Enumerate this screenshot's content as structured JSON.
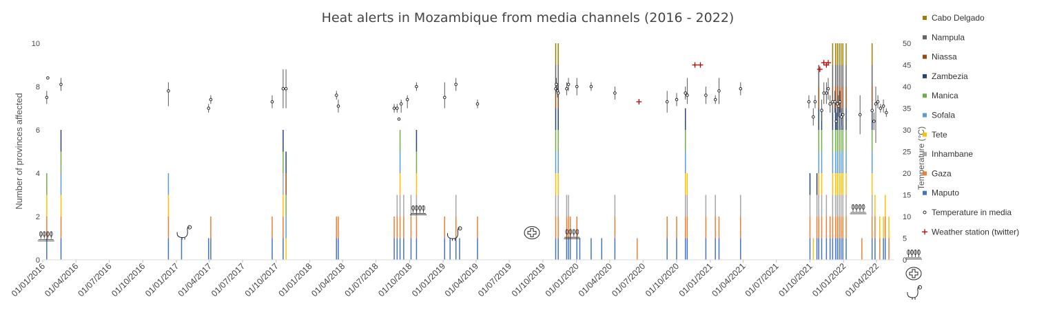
{
  "chart_data": {
    "type": "bar",
    "title": "Heat alerts in Mozambique from media channels (2016 - 2022)",
    "ylabel": "Number of provinces affected",
    "y2label": "Temperature (°C)",
    "ylim": [
      0,
      10
    ],
    "yticks": [
      0,
      2,
      4,
      6,
      8,
      10
    ],
    "y2lim": [
      0,
      50
    ],
    "y2ticks": [
      0,
      5,
      10,
      15,
      20,
      25,
      30,
      35,
      40,
      45,
      50
    ],
    "xlim": [
      "2016-01-01",
      "2022-05-20"
    ],
    "xticks": [
      "01/01/2016",
      "01/04/2016",
      "01/07/2016",
      "01/10/2016",
      "01/01/2017",
      "01/04/2017",
      "01/07/2017",
      "01/10/2017",
      "01/01/2018",
      "01/04/2018",
      "01/07/2018",
      "01/10/2018",
      "01/01/2019",
      "01/04/2019",
      "01/07/2019",
      "01/10/2019",
      "01/01/2020",
      "01/04/2020",
      "01/07/2020",
      "01/10/2020",
      "01/01/2021",
      "01/04/2021",
      "01/07/2021",
      "01/10/2021",
      "01/01/2022",
      "01/04/2022"
    ],
    "legend_position": "right",
    "grid": false,
    "series": [
      {
        "name": "Cabo Delgado",
        "color": "#9c7f00"
      },
      {
        "name": "Nampula",
        "color": "#636363"
      },
      {
        "name": "Niassa",
        "color": "#9e480e"
      },
      {
        "name": "Zambezia",
        "color": "#264478"
      },
      {
        "name": "Manica",
        "color": "#70ad47"
      },
      {
        "name": "Sofala",
        "color": "#5b9bd5"
      },
      {
        "name": "Tete",
        "color": "#ffc000"
      },
      {
        "name": "Inhambane",
        "color": "#a5a5a5"
      },
      {
        "name": "Gaza",
        "color": "#ed7d31"
      },
      {
        "name": "Maputo",
        "color": "#4472c4"
      }
    ],
    "temperature_series": {
      "name": "Temperature in media"
    },
    "station_series": {
      "name": "Weather station (twitter)",
      "color": "#c00000"
    },
    "bars": [
      {
        "date": "2016-01-12",
        "stack": [
          "Maputo",
          "Gaza",
          "Tete",
          "Manica"
        ]
      },
      {
        "date": "2016-02-20",
        "stack": [
          "Maputo",
          "Gaza",
          "Tete",
          "Sofala",
          "Manica",
          "Zambezia"
        ]
      },
      {
        "date": "2016-12-10",
        "stack": [
          "Maputo",
          "Gaza",
          "Tete",
          "Sofala"
        ]
      },
      {
        "date": "2017-01-15",
        "stack": [
          "Maputo"
        ]
      },
      {
        "date": "2017-03-30",
        "stack": [
          "Maputo"
        ]
      },
      {
        "date": "2017-04-05",
        "stack": [
          "Maputo",
          "Gaza"
        ]
      },
      {
        "date": "2017-09-20",
        "stack": [
          "Maputo",
          "Gaza"
        ]
      },
      {
        "date": "2017-10-20",
        "stack": [
          "Maputo",
          "Gaza",
          "Tete",
          "Inhambane",
          "Manica",
          "Zambezia"
        ]
      },
      {
        "date": "2017-10-28",
        "stack": [
          "Tete",
          "Sofala",
          "Manica",
          "Niassa",
          "Zambezia"
        ]
      },
      {
        "date": "2018-03-15",
        "stack": [
          "Maputo",
          "Gaza"
        ]
      },
      {
        "date": "2018-03-20",
        "stack": [
          "Maputo",
          "Gaza"
        ]
      },
      {
        "date": "2018-08-20",
        "stack": [
          "Maputo",
          "Gaza"
        ]
      },
      {
        "date": "2018-08-28",
        "stack": [
          "Maputo",
          "Gaza",
          "Inhambane"
        ]
      },
      {
        "date": "2018-09-05",
        "stack": [
          "Maputo",
          "Gaza",
          "Inhambane",
          "Tete",
          "Sofala",
          "Manica"
        ]
      },
      {
        "date": "2018-09-15",
        "stack": [
          "Maputo",
          "Gaza",
          "Inhambane"
        ]
      },
      {
        "date": "2018-10-05",
        "stack": [
          "Maputo",
          "Gaza",
          "Inhambane"
        ]
      },
      {
        "date": "2018-10-20",
        "stack": [
          "Maputo",
          "Gaza",
          "Inhambane",
          "Tete",
          "Manica",
          "Zambezia"
        ]
      },
      {
        "date": "2019-01-05",
        "stack": [
          "Maputo",
          "Gaza"
        ]
      },
      {
        "date": "2019-01-20",
        "stack": [
          "Maputo"
        ]
      },
      {
        "date": "2019-02-05",
        "stack": [
          "Maputo",
          "Gaza",
          "Inhambane"
        ]
      },
      {
        "date": "2019-02-15",
        "stack": [
          "Maputo"
        ]
      },
      {
        "date": "2019-04-05",
        "stack": [
          "Maputo",
          "Gaza"
        ]
      },
      {
        "date": "2019-11-05",
        "stack": [
          "Maputo",
          "Gaza",
          "Inhambane",
          "Tete",
          "Sofala",
          "Manica",
          "Zambezia",
          "Niassa",
          "Nampula",
          "Cabo Delgado"
        ]
      },
      {
        "date": "2019-11-12",
        "stack": [
          "Maputo",
          "Gaza",
          "Inhambane",
          "Tete",
          "Sofala",
          "Manica",
          "Zambezia",
          "Niassa",
          "Nampula",
          "Cabo Delgado"
        ]
      },
      {
        "date": "2019-12-05",
        "stack": [
          "Maputo",
          "Gaza",
          "Inhambane"
        ]
      },
      {
        "date": "2019-12-10",
        "stack": [
          "Maputo",
          "Gaza",
          "Inhambane"
        ]
      },
      {
        "date": "2019-12-15",
        "stack": [
          "Maputo",
          "Gaza"
        ]
      },
      {
        "date": "2020-01-02",
        "stack": [
          "Maputo",
          "Gaza"
        ]
      },
      {
        "date": "2020-01-10",
        "stack": [
          "Maputo"
        ]
      },
      {
        "date": "2020-02-10",
        "stack": [
          "Maputo"
        ]
      },
      {
        "date": "2020-03-10",
        "stack": [
          "Maputo"
        ]
      },
      {
        "date": "2020-04-15",
        "stack": [
          "Maputo",
          "Gaza",
          "Inhambane"
        ]
      },
      {
        "date": "2020-06-15",
        "stack": [
          "Gaza"
        ]
      },
      {
        "date": "2020-09-05",
        "stack": [
          "Maputo",
          "Gaza"
        ]
      },
      {
        "date": "2020-10-01",
        "stack": [
          "Maputo",
          "Gaza"
        ]
      },
      {
        "date": "2020-10-25",
        "stack": [
          "Maputo",
          "Gaza",
          "Inhambane",
          "Tete",
          "Sofala",
          "Manica",
          "Zambezia"
        ]
      },
      {
        "date": "2020-10-30",
        "stack": [
          "Maputo",
          "Gaza",
          "Inhambane",
          "Tete"
        ]
      },
      {
        "date": "2020-12-20",
        "stack": [
          "Maputo",
          "Gaza",
          "Inhambane"
        ]
      },
      {
        "date": "2021-01-15",
        "stack": [
          "Maputo",
          "Gaza",
          "Inhambane"
        ]
      },
      {
        "date": "2021-01-25",
        "stack": [
          "Maputo",
          "Gaza"
        ]
      },
      {
        "date": "2021-03-25",
        "stack": [
          "Maputo",
          "Gaza",
          "Inhambane"
        ]
      },
      {
        "date": "2021-10-01",
        "stack": [
          "Maputo",
          "Gaza",
          "Inhambane",
          "Zambezia"
        ]
      },
      {
        "date": "2021-10-10",
        "stack": [
          "Tete"
        ]
      },
      {
        "date": "2021-10-20",
        "stack": [
          "Maputo",
          "Gaza",
          "Inhambane",
          "Zambezia"
        ]
      },
      {
        "date": "2021-10-25",
        "stack": [
          "Maputo",
          "Gaza",
          "Inhambane",
          "Tete",
          "Sofala",
          "Manica",
          "Zambezia",
          "Niassa",
          "Nampula"
        ]
      },
      {
        "date": "2021-11-02",
        "stack": [
          "Maputo",
          "Gaza",
          "Inhambane",
          "Tete",
          "Sofala",
          "Manica",
          "Zambezia"
        ]
      },
      {
        "date": "2021-11-15",
        "stack": [
          "Maputo",
          "Gaza",
          "Inhambane"
        ]
      },
      {
        "date": "2021-11-25",
        "stack": [
          "Maputo",
          "Gaza"
        ]
      },
      {
        "date": "2021-12-02",
        "stack": [
          "Maputo",
          "Gaza",
          "Inhambane",
          "Tete",
          "Sofala",
          "Manica",
          "Zambezia",
          "Niassa",
          "Nampula",
          "Cabo Delgado"
        ]
      },
      {
        "date": "2021-12-10",
        "stack": [
          "Maputo",
          "Gaza",
          "Inhambane",
          "Tete",
          "Sofala",
          "Manica",
          "Zambezia",
          "Niassa",
          "Nampula",
          "Cabo Delgado"
        ]
      },
      {
        "date": "2021-12-15",
        "stack": [
          "Maputo",
          "Gaza",
          "Inhambane",
          "Tete",
          "Sofala",
          "Manica",
          "Zambezia",
          "Niassa",
          "Nampula",
          "Cabo Delgado"
        ]
      },
      {
        "date": "2021-12-20",
        "stack": [
          "Maputo",
          "Gaza",
          "Inhambane",
          "Tete",
          "Sofala",
          "Manica",
          "Zambezia",
          "Niassa",
          "Nampula",
          "Cabo Delgado"
        ]
      },
      {
        "date": "2021-12-25",
        "stack": [
          "Maputo",
          "Gaza",
          "Inhambane",
          "Tete",
          "Sofala",
          "Manica",
          "Zambezia",
          "Niassa",
          "Nampula",
          "Cabo Delgado"
        ]
      },
      {
        "date": "2021-12-30",
        "stack": [
          "Maputo",
          "Gaza",
          "Inhambane",
          "Tete",
          "Sofala",
          "Manica",
          "Zambezia",
          "Niassa",
          "Nampula",
          "Cabo Delgado"
        ]
      },
      {
        "date": "2022-01-08",
        "stack": [
          "Maputo",
          "Gaza",
          "Inhambane",
          "Tete",
          "Sofala",
          "Manica",
          "Zambezia",
          "Niassa",
          "Nampula",
          "Cabo Delgado"
        ]
      },
      {
        "date": "2022-02-20",
        "stack": [
          "Gaza"
        ]
      },
      {
        "date": "2022-03-20",
        "stack": [
          "Maputo",
          "Gaza",
          "Inhambane",
          "Tete",
          "Sofala",
          "Manica",
          "Zambezia",
          "Niassa",
          "Nampula",
          "Cabo Delgado"
        ]
      },
      {
        "date": "2022-03-28",
        "stack": [
          "Maputo",
          "Gaza",
          "Tete"
        ]
      },
      {
        "date": "2022-04-10",
        "stack": [
          "Gaza",
          "Tete"
        ]
      },
      {
        "date": "2022-04-20",
        "stack": [
          "Maputo",
          "Tete"
        ]
      },
      {
        "date": "2022-04-25",
        "stack": [
          "Maputo",
          "Gaza",
          "Tete"
        ]
      },
      {
        "date": "2022-05-05",
        "stack": [
          "Gaza",
          "Tete"
        ]
      }
    ],
    "temperature_points": [
      {
        "date": "2016-01-12",
        "temp": 37.5,
        "low": 36,
        "high": 39
      },
      {
        "date": "2016-01-15",
        "temp": 42
      },
      {
        "date": "2016-02-20",
        "temp": 40.5,
        "low": 39,
        "high": 42
      },
      {
        "date": "2016-12-10",
        "temp": 39,
        "low": 35.5,
        "high": 41
      },
      {
        "date": "2017-03-30",
        "temp": 35,
        "low": 34,
        "high": 36
      },
      {
        "date": "2017-04-05",
        "temp": 37,
        "low": 36,
        "high": 38
      },
      {
        "date": "2017-09-20",
        "temp": 36.5,
        "low": 35,
        "high": 38
      },
      {
        "date": "2017-10-20",
        "temp": 39.5,
        "low": 35,
        "high": 44
      },
      {
        "date": "2017-10-28",
        "temp": 39.5,
        "low": 35,
        "high": 44
      },
      {
        "date": "2018-03-15",
        "temp": 38,
        "low": 37,
        "high": 39
      },
      {
        "date": "2018-03-20",
        "temp": 35.5,
        "low": 34,
        "high": 37
      },
      {
        "date": "2018-08-20",
        "temp": 35,
        "low": 34,
        "high": 36
      },
      {
        "date": "2018-08-28",
        "temp": 35,
        "low": 34,
        "high": 36
      },
      {
        "date": "2018-09-02",
        "temp": 32.5
      },
      {
        "date": "2018-09-08",
        "temp": 36,
        "low": 34,
        "high": 37
      },
      {
        "date": "2018-09-25",
        "temp": 37,
        "low": 35,
        "high": 38
      },
      {
        "date": "2018-10-20",
        "temp": 40,
        "low": 39,
        "high": 41
      },
      {
        "date": "2019-01-05",
        "temp": 37.5,
        "low": 35,
        "high": 41
      },
      {
        "date": "2019-02-05",
        "temp": 40.5,
        "low": 39,
        "high": 42
      },
      {
        "date": "2019-04-05",
        "temp": 36,
        "low": 35,
        "high": 37
      },
      {
        "date": "2019-11-05",
        "temp": 39.5,
        "low": 38,
        "high": 41
      },
      {
        "date": "2019-11-07",
        "temp": 40.5,
        "low": 39,
        "high": 42
      },
      {
        "date": "2019-11-10",
        "temp": 39,
        "low": 37.5,
        "high": 40.5
      },
      {
        "date": "2019-11-12",
        "temp": 38.5,
        "low": 37,
        "high": 40
      },
      {
        "date": "2019-12-05",
        "temp": 39.5,
        "low": 38,
        "high": 41
      },
      {
        "date": "2019-12-10",
        "temp": 40.5,
        "low": 39,
        "high": 42
      },
      {
        "date": "2020-01-02",
        "temp": 40,
        "low": 38,
        "high": 42
      },
      {
        "date": "2020-02-10",
        "temp": 40,
        "low": 39,
        "high": 41
      },
      {
        "date": "2020-04-15",
        "temp": 38.5,
        "low": 37,
        "high": 40
      },
      {
        "date": "2020-09-05",
        "temp": 36.5,
        "low": 34,
        "high": 39
      },
      {
        "date": "2020-10-01",
        "temp": 37,
        "low": 35.5,
        "high": 38.5
      },
      {
        "date": "2020-10-25",
        "temp": 38.5,
        "low": 37,
        "high": 40
      },
      {
        "date": "2020-10-30",
        "temp": 38,
        "low": 36,
        "high": 42
      },
      {
        "date": "2020-12-20",
        "temp": 38,
        "low": 36,
        "high": 40
      },
      {
        "date": "2021-01-15",
        "temp": 37,
        "low": 36,
        "high": 38
      },
      {
        "date": "2021-01-25",
        "temp": 39,
        "low": 36,
        "high": 42
      },
      {
        "date": "2021-03-25",
        "temp": 39.5,
        "low": 38,
        "high": 41
      },
      {
        "date": "2021-09-28",
        "temp": 36.5,
        "low": 35,
        "high": 38
      },
      {
        "date": "2021-10-10",
        "temp": 33,
        "low": 31,
        "high": 35
      },
      {
        "date": "2021-10-15",
        "temp": 36.5,
        "low": 35,
        "high": 38
      },
      {
        "date": "2021-11-02",
        "temp": 34.5,
        "low": 32,
        "high": 37
      },
      {
        "date": "2021-11-08",
        "temp": 38.5,
        "low": 36,
        "high": 41
      },
      {
        "date": "2021-11-15",
        "temp": 38.5,
        "low": 36,
        "high": 41
      },
      {
        "date": "2021-11-20",
        "temp": 39.5,
        "low": 37,
        "high": 42
      },
      {
        "date": "2021-11-25",
        "temp": 36,
        "low": 34,
        "high": 38
      },
      {
        "date": "2021-12-02",
        "temp": 36.5,
        "low": 34,
        "high": 39
      },
      {
        "date": "2021-12-08",
        "temp": 36.5,
        "low": 34,
        "high": 39
      },
      {
        "date": "2021-12-12",
        "temp": 32,
        "low": 30,
        "high": 34
      },
      {
        "date": "2021-12-15",
        "temp": 36,
        "low": 34,
        "high": 38
      },
      {
        "date": "2021-12-18",
        "temp": 35.5,
        "low": 33,
        "high": 38
      },
      {
        "date": "2021-12-22",
        "temp": 36.5,
        "low": 34,
        "high": 39
      },
      {
        "date": "2021-12-26",
        "temp": 33,
        "low": 31,
        "high": 35
      },
      {
        "date": "2021-12-30",
        "temp": 33.5,
        "low": 31,
        "high": 36
      },
      {
        "date": "2022-02-15",
        "temp": 33.5,
        "low": 29,
        "high": 38
      },
      {
        "date": "2022-03-20",
        "temp": 34.5,
        "low": 32,
        "high": 37
      },
      {
        "date": "2022-03-25",
        "temp": 32,
        "low": 30,
        "high": 34
      },
      {
        "date": "2022-03-30",
        "temp": 36,
        "low": 27,
        "high": 40
      },
      {
        "date": "2022-04-05",
        "temp": 36.5,
        "low": 35,
        "high": 38
      },
      {
        "date": "2022-04-12",
        "temp": 35,
        "low": 34,
        "high": 36
      },
      {
        "date": "2022-04-20",
        "temp": 35.5,
        "low": 34,
        "high": 37
      },
      {
        "date": "2022-04-28",
        "temp": 34,
        "low": 33,
        "high": 35
      }
    ],
    "station_points": [
      {
        "date": "2020-06-20",
        "temp": 36.5
      },
      {
        "date": "2020-11-20",
        "temp": 45
      },
      {
        "date": "2020-12-05",
        "temp": 45
      },
      {
        "date": "2021-10-28",
        "temp": 44
      },
      {
        "date": "2021-11-08",
        "temp": 45.5
      },
      {
        "date": "2021-11-15",
        "temp": 45
      },
      {
        "date": "2021-11-20",
        "temp": 45.5
      }
    ],
    "annotations": [
      {
        "kind": "wheat",
        "date": "2016-01-10",
        "value": 1.1
      },
      {
        "kind": "chicken",
        "date": "2017-01-20",
        "value": 1.25
      },
      {
        "kind": "wheat",
        "date": "2018-10-25",
        "value": 2.3
      },
      {
        "kind": "chicken",
        "date": "2019-01-30",
        "value": 1.2
      },
      {
        "kind": "medical",
        "date": "2019-09-01",
        "value": 1.25
      },
      {
        "kind": "wheat",
        "date": "2019-12-20",
        "value": 1.2
      },
      {
        "kind": "wheat",
        "date": "2022-02-10",
        "value": 2.35
      }
    ],
    "below_axis_icons": [
      "wheat",
      "medical",
      "chicken"
    ]
  }
}
